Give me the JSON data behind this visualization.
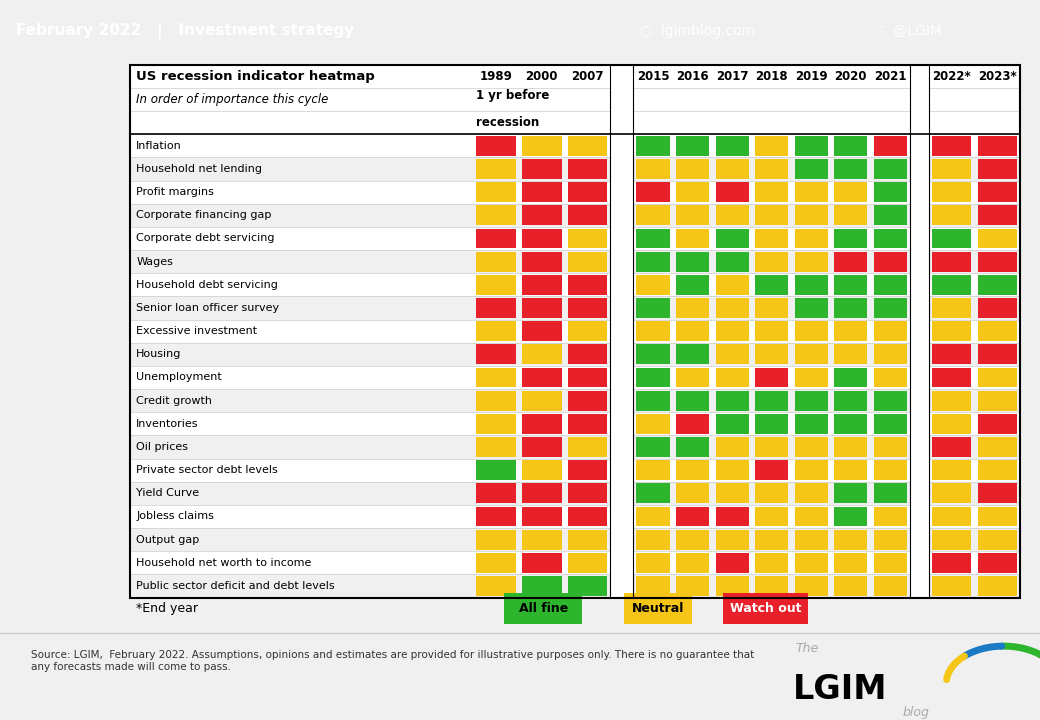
{
  "title_bar": "February 2022   |   Investment strategy",
  "title_bar_color": "#1a7bc4",
  "table_title": "US recession indicator heatmap",
  "table_subtitle": "In order of importance this cycle",
  "col_header_1yr": "1 yr before",
  "col_header_recession": "recession",
  "years_historical": [
    "1989",
    "2000",
    "2007"
  ],
  "years_recent": [
    "2015",
    "2016",
    "2017",
    "2018",
    "2019",
    "2020",
    "2021"
  ],
  "years_forecast": [
    "2022*",
    "2023*"
  ],
  "indicators": [
    "Inflation",
    "Household net lending",
    "Profit margins",
    "Corporate financing gap",
    "Corporate debt servicing",
    "Wages",
    "Household debt servicing",
    "Senior loan officer survey",
    "Excessive investment",
    "Housing",
    "Unemployment",
    "Credit growth",
    "Inventories",
    "Oil prices",
    "Private sector debt levels",
    "Yield Curve",
    "Jobless claims",
    "Output gap",
    "Household net worth to income",
    "Public sector deficit and debt levels"
  ],
  "colors": {
    "R": "#e8202a",
    "Y": "#f5c518",
    "G": "#2db52d",
    "W": "#ffffff"
  },
  "historical_data": [
    [
      "R",
      "Y",
      "Y"
    ],
    [
      "Y",
      "R",
      "R"
    ],
    [
      "Y",
      "R",
      "R"
    ],
    [
      "Y",
      "R",
      "R"
    ],
    [
      "R",
      "R",
      "Y"
    ],
    [
      "Y",
      "R",
      "Y"
    ],
    [
      "Y",
      "R",
      "R"
    ],
    [
      "R",
      "R",
      "R"
    ],
    [
      "Y",
      "R",
      "Y"
    ],
    [
      "R",
      "Y",
      "R"
    ],
    [
      "Y",
      "R",
      "R"
    ],
    [
      "Y",
      "Y",
      "R"
    ],
    [
      "Y",
      "R",
      "R"
    ],
    [
      "Y",
      "R",
      "Y"
    ],
    [
      "G",
      "Y",
      "R"
    ],
    [
      "R",
      "R",
      "R"
    ],
    [
      "R",
      "R",
      "R"
    ],
    [
      "Y",
      "Y",
      "Y"
    ],
    [
      "Y",
      "R",
      "Y"
    ],
    [
      "Y",
      "G",
      "G"
    ]
  ],
  "recent_data": [
    [
      "G",
      "G",
      "G",
      "Y",
      "G",
      "G",
      "R"
    ],
    [
      "Y",
      "Y",
      "Y",
      "Y",
      "G",
      "G",
      "G"
    ],
    [
      "R",
      "Y",
      "R",
      "Y",
      "Y",
      "Y",
      "G"
    ],
    [
      "Y",
      "Y",
      "Y",
      "Y",
      "Y",
      "Y",
      "G"
    ],
    [
      "G",
      "Y",
      "G",
      "Y",
      "Y",
      "G",
      "G"
    ],
    [
      "G",
      "G",
      "G",
      "Y",
      "Y",
      "R",
      "R"
    ],
    [
      "Y",
      "G",
      "Y",
      "G",
      "G",
      "G",
      "G"
    ],
    [
      "G",
      "Y",
      "Y",
      "Y",
      "G",
      "G",
      "G"
    ],
    [
      "Y",
      "Y",
      "Y",
      "Y",
      "Y",
      "Y",
      "Y"
    ],
    [
      "G",
      "G",
      "Y",
      "Y",
      "Y",
      "Y",
      "Y"
    ],
    [
      "G",
      "Y",
      "Y",
      "R",
      "Y",
      "G",
      "Y"
    ],
    [
      "G",
      "G",
      "G",
      "G",
      "G",
      "G",
      "G"
    ],
    [
      "Y",
      "R",
      "G",
      "G",
      "G",
      "G",
      "G"
    ],
    [
      "G",
      "G",
      "Y",
      "Y",
      "Y",
      "Y",
      "Y"
    ],
    [
      "Y",
      "Y",
      "Y",
      "R",
      "Y",
      "Y",
      "Y"
    ],
    [
      "G",
      "Y",
      "Y",
      "Y",
      "Y",
      "G",
      "G"
    ],
    [
      "Y",
      "R",
      "R",
      "Y",
      "Y",
      "G",
      "Y"
    ],
    [
      "Y",
      "Y",
      "Y",
      "Y",
      "Y",
      "Y",
      "Y"
    ],
    [
      "Y",
      "Y",
      "R",
      "Y",
      "Y",
      "Y",
      "Y"
    ],
    [
      "Y",
      "Y",
      "Y",
      "Y",
      "Y",
      "Y",
      "Y"
    ]
  ],
  "forecast_data": [
    [
      "R",
      "R"
    ],
    [
      "Y",
      "R"
    ],
    [
      "Y",
      "R"
    ],
    [
      "Y",
      "R"
    ],
    [
      "G",
      "Y"
    ],
    [
      "R",
      "R"
    ],
    [
      "G",
      "G"
    ],
    [
      "Y",
      "R"
    ],
    [
      "Y",
      "Y"
    ],
    [
      "R",
      "R"
    ],
    [
      "R",
      "Y"
    ],
    [
      "Y",
      "Y"
    ],
    [
      "Y",
      "R"
    ],
    [
      "R",
      "Y"
    ],
    [
      "Y",
      "Y"
    ],
    [
      "Y",
      "R"
    ],
    [
      "Y",
      "Y"
    ],
    [
      "Y",
      "Y"
    ],
    [
      "R",
      "R"
    ],
    [
      "Y",
      "Y"
    ]
  ],
  "legend_all_fine_color": "#2db52d",
  "legend_neutral_color": "#f5c518",
  "legend_watch_out_color": "#e8202a",
  "footer_source": "Source: LGIM,  February 2022. Assumptions, opinions and estimates are provided for illustrative purposes only. There is no guarantee that\nany forecasts made will come to pass.",
  "end_year_note": "*End year"
}
